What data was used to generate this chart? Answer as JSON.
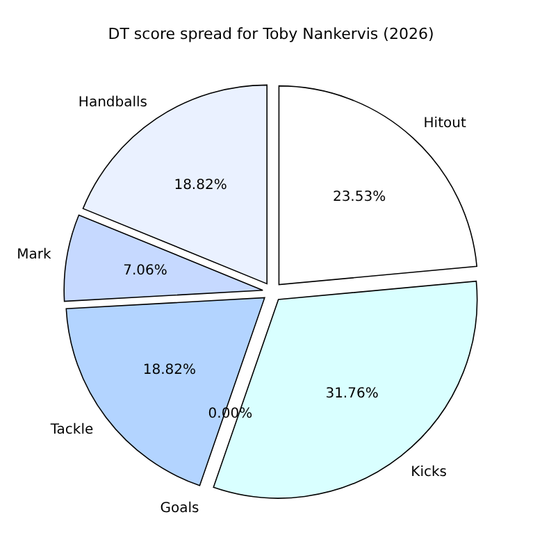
{
  "chart_data": {
    "type": "pie",
    "title": "DT score spread for Toby Nankervis (2026)",
    "categories": [
      "Hitout",
      "Kicks",
      "Goals",
      "Tackle",
      "Mark",
      "Handballs"
    ],
    "values": [
      23.53,
      31.76,
      0.0,
      18.82,
      7.06,
      18.82
    ],
    "value_labels": [
      "23.53%",
      "31.76%",
      "0.00%",
      "18.82%",
      "7.06%",
      "18.82%"
    ],
    "colors": [
      "#ffffff",
      "#d9ffff",
      "#b0c8f0",
      "#b3d4ff",
      "#c6d9ff",
      "#eaf1ff"
    ],
    "legend": false
  }
}
